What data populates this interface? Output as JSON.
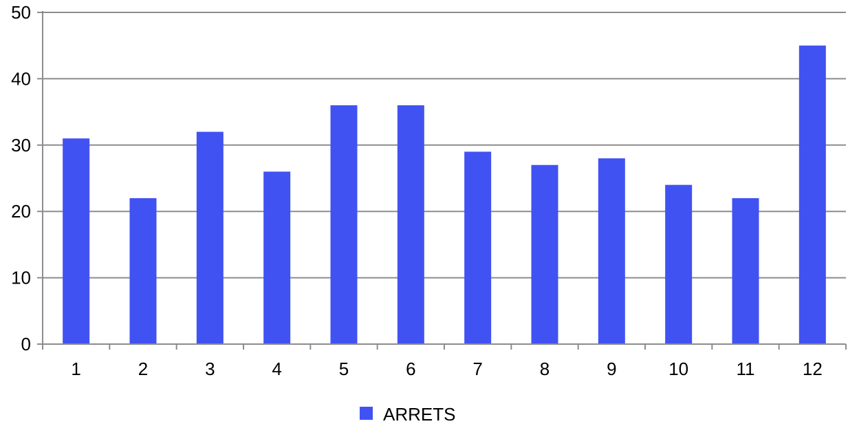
{
  "chart_data": {
    "type": "bar",
    "categories": [
      "1",
      "2",
      "3",
      "4",
      "5",
      "6",
      "7",
      "8",
      "9",
      "10",
      "11",
      "12"
    ],
    "series": [
      {
        "name": "ARRETS",
        "values": [
          31,
          22,
          32,
          26,
          36,
          36,
          29,
          27,
          28,
          24,
          22,
          45
        ]
      }
    ],
    "title": "",
    "xlabel": "",
    "ylabel": "",
    "ylim": [
      0,
      50
    ],
    "yticks": [
      "0",
      "10",
      "20",
      "30",
      "40",
      "50"
    ],
    "grid": true,
    "legend_position": "bottom-center",
    "colors": {
      "bar": "#4152f2",
      "grid": "#8c8c8c",
      "axis": "#8c8c8c"
    }
  }
}
